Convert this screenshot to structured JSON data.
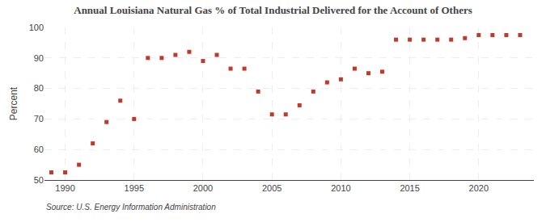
{
  "chart_data": {
    "type": "scatter",
    "title": "Annual Louisiana Natural Gas % of Total Industrial Delivered for the Account of Others",
    "ylabel": "Percent",
    "source": "Source: U.S. Energy Information Administration",
    "x": [
      1989,
      1990,
      1991,
      1992,
      1993,
      1994,
      1995,
      1996,
      1997,
      1998,
      1999,
      2000,
      2001,
      2002,
      2003,
      2004,
      2005,
      2006,
      2007,
      2008,
      2009,
      2010,
      2011,
      2012,
      2013,
      2014,
      2015,
      2016,
      2017,
      2018,
      2019,
      2020,
      2021,
      2022,
      2023
    ],
    "values": [
      52.5,
      52.5,
      55.0,
      62.0,
      69.0,
      76.0,
      70.0,
      90.0,
      90.0,
      91.0,
      92.0,
      89.0,
      91.0,
      86.5,
      86.5,
      79.0,
      71.5,
      71.5,
      74.5,
      79.0,
      82.0,
      83.0,
      86.5,
      85.0,
      85.5,
      96.0,
      96.0,
      96.0,
      96.0,
      96.0,
      96.5,
      97.5,
      97.5,
      97.5,
      97.5
    ],
    "color": "#c0392b",
    "marker": "square",
    "xlim": [
      1988.5,
      2024
    ],
    "xticks": [
      1990,
      1995,
      2000,
      2005,
      2010,
      2015,
      2020
    ],
    "ylim": [
      50,
      100
    ],
    "yticks": [
      50,
      60,
      70,
      80,
      90,
      100
    ],
    "grid": true
  }
}
